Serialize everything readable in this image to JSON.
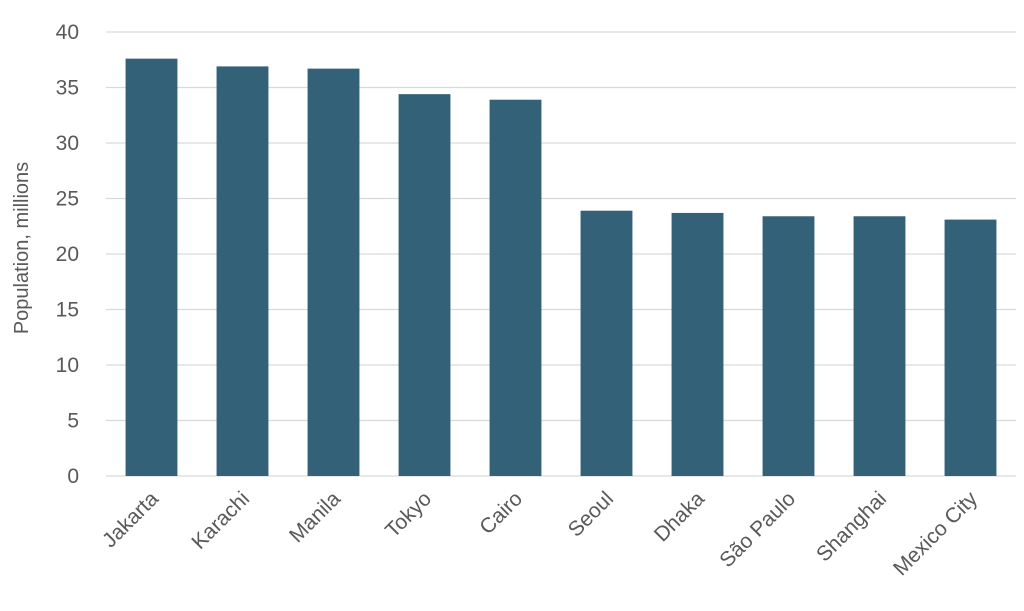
{
  "chart_data": {
    "type": "bar",
    "title": "",
    "xlabel": "",
    "ylabel": "Population, millions",
    "categories": [
      "Jakarta",
      "Karachi",
      "Manila",
      "Tokyo",
      "Cairo",
      "Seoul",
      "Dhaka",
      "São Paulo",
      "Shanghai",
      "Mexico City"
    ],
    "values": [
      37.6,
      36.9,
      36.7,
      34.4,
      33.9,
      23.9,
      23.7,
      23.4,
      23.4,
      23.1
    ],
    "ylim": [
      0,
      40
    ],
    "yticks": [
      "0",
      "5",
      "10",
      "15",
      "20",
      "25",
      "30",
      "35",
      "40"
    ],
    "grid": true,
    "legend": "none",
    "colors": {
      "bar": "#336278",
      "grid": "#d9d9d9",
      "text": "#595959"
    }
  }
}
